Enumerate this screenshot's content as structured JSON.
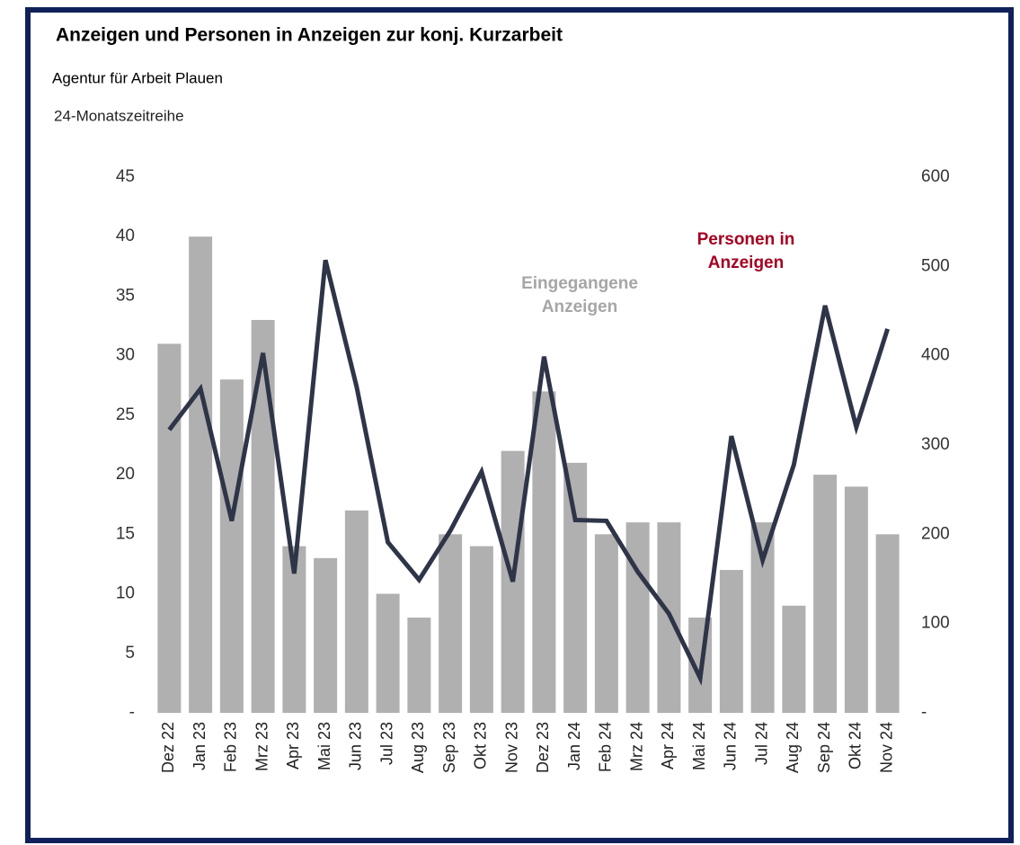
{
  "chart_data": {
    "type": "bar_line",
    "title": "Anzeigen und Personen in Anzeigen zur konj. Kurzarbeit",
    "subtitle": "Agentur für Arbeit Plauen",
    "note": "24-Monatszeitreihe",
    "categories": [
      "Dez 22",
      "Jan 23",
      "Feb 23",
      "Mrz 23",
      "Apr 23",
      "Mai 23",
      "Jun 23",
      "Jul 23",
      "Aug 23",
      "Sep 23",
      "Okt 23",
      "Nov 23",
      "Dez 23",
      "Jan 24",
      "Feb 24",
      "Mrz 24",
      "Apr 24",
      "Mai 24",
      "Jun 24",
      "Jul 24",
      "Aug 24",
      "Sep 24",
      "Okt 24",
      "Nov 24"
    ],
    "series": [
      {
        "name": "Eingegangene Anzeigen",
        "type": "bar",
        "color": "#b0b0b0",
        "label_color": "#a6a6a6",
        "values": [
          31,
          40,
          28,
          33,
          14,
          13,
          17,
          10,
          8,
          15,
          14,
          22,
          27,
          21,
          15,
          16,
          16,
          8,
          12,
          16,
          9,
          20,
          19,
          15
        ]
      },
      {
        "name": "Personen in Anzeigen",
        "type": "line",
        "axis": "y2",
        "color": "#2e3548",
        "label_color": "#a50021",
        "values": [
          317,
          363,
          215,
          403,
          156,
          507,
          365,
          191,
          149,
          204,
          270,
          147,
          399,
          216,
          215,
          158,
          111,
          39,
          310,
          171,
          278,
          456,
          320,
          430
        ]
      }
    ],
    "ylim": [
      0,
      45
    ],
    "yticks": [
      {
        "value": 0,
        "label": "-"
      },
      5,
      10,
      15,
      20,
      25,
      30,
      35,
      40,
      45
    ],
    "y2lim": [
      0,
      600
    ],
    "y2ticks": [
      {
        "value": 0,
        "label": "-"
      },
      100,
      200,
      300,
      400,
      500,
      600
    ]
  }
}
